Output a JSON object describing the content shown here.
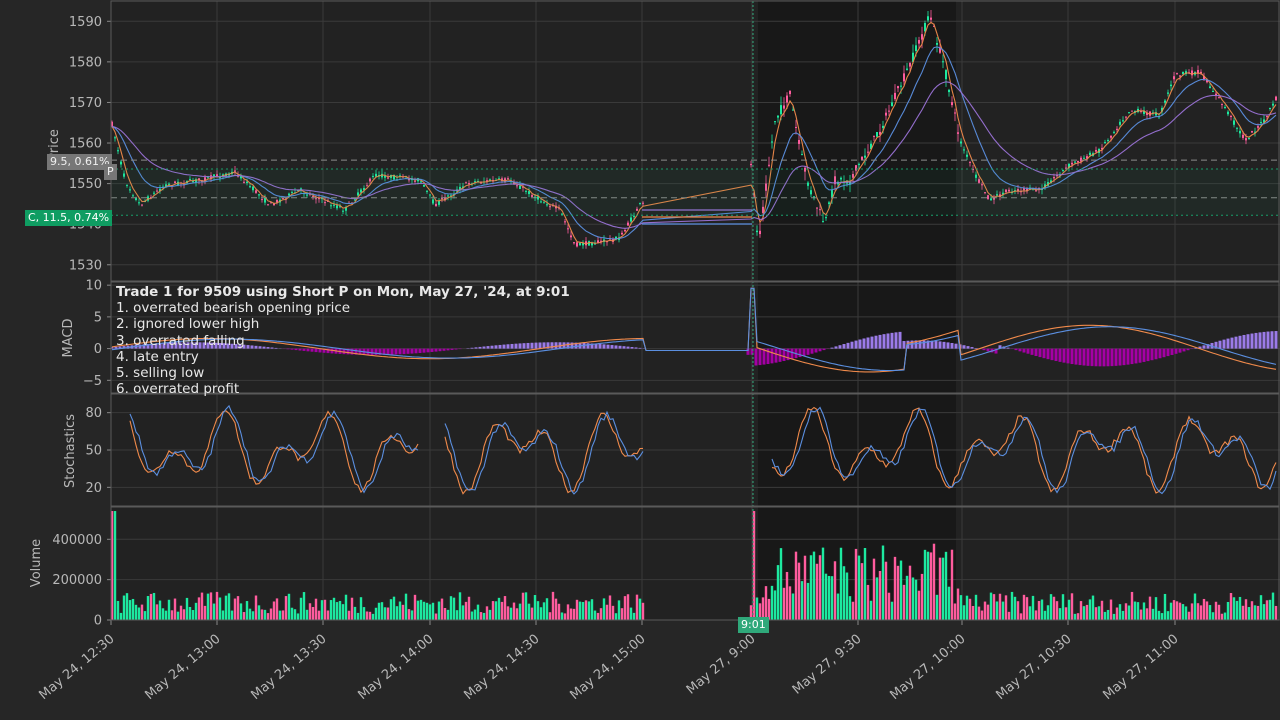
{
  "chart_data": [
    {
      "panel": "price",
      "type": "candlestick",
      "ylabel": "Price",
      "yticks": [
        1530,
        1540,
        1550,
        1560,
        1570,
        1580,
        1590
      ],
      "ylim": [
        1526,
        1595
      ],
      "x_ticks": [
        "May 24, 12:30",
        "May 24, 13:00",
        "May 24, 13:30",
        "May 24, 14:00",
        "May 24, 14:30",
        "May 24, 15:00",
        "May 27, 9:00",
        "May 27, 9:30",
        "May 27, 10:00",
        "May 27, 10:30",
        "May 27, 11:00"
      ],
      "series": [
        {
          "color": "#f08a4b",
          "kind": "moving-average"
        },
        {
          "color": "#5b8fe0",
          "kind": "moving-average"
        },
        {
          "color": "#9a72d6",
          "kind": "moving-average"
        }
      ],
      "reference_lines": [
        {
          "label": "9.5, 0.61%",
          "price": 1555.8,
          "style": "dashed",
          "color": "#8a8a8a"
        },
        {
          "label": "C, 11.5, 0.74%",
          "price": 1542.2,
          "style": "dotted",
          "color": "#18a06a"
        },
        {
          "price": 1553.6,
          "style": "dotted",
          "color": "#18a06a"
        },
        {
          "price": 1546.5,
          "style": "dashed",
          "color": "#8a8a8a"
        }
      ],
      "marker_label": "P",
      "up_color": "#1de9a0",
      "down_color": "#ff5c9e"
    },
    {
      "panel": "macd",
      "type": "line+bar",
      "ylabel": "MACD",
      "yticks": [
        -5,
        0,
        5,
        10
      ],
      "ylim": [
        -7,
        10.5
      ],
      "positive_bar_color": "#9b7be8",
      "negative_bar_color": "#a400a4"
    },
    {
      "panel": "stochastics",
      "type": "line",
      "ylabel": "Stochastics",
      "yticks": [
        20,
        50,
        80
      ],
      "ylim": [
        5,
        95
      ]
    },
    {
      "panel": "volume",
      "type": "bar",
      "ylabel": "Volume",
      "yticks": [
        0,
        200000,
        400000
      ],
      "ylim": [
        0,
        560000
      ]
    }
  ],
  "annotation": {
    "title": "Trade 1 for 9509 using Short P on Mon, May 27, '24, at 9:01",
    "items": [
      "1. overrated bearish opening price",
      "2. ignored lower high",
      "3. overrated falling",
      "4. late entry",
      "5. selling low",
      "6. overrated profit"
    ]
  },
  "cursor_label": "9:01",
  "ylabel_labels": {
    "price": "Price",
    "macd": "MACD",
    "stochastics": "Stochastics",
    "volume": "Volume"
  }
}
